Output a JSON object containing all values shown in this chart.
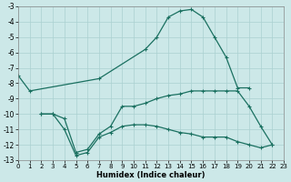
{
  "xlabel": "Humidex (Indice chaleur)",
  "xlim": [
    0,
    23
  ],
  "ylim": [
    -13,
    -3
  ],
  "yticks": [
    -13,
    -12,
    -11,
    -10,
    -9,
    -8,
    -7,
    -6,
    -5,
    -4,
    -3
  ],
  "xticks": [
    0,
    1,
    2,
    3,
    4,
    5,
    6,
    7,
    8,
    9,
    10,
    11,
    12,
    13,
    14,
    15,
    16,
    17,
    18,
    19,
    20,
    21,
    22,
    23
  ],
  "bg_color": "#cce8e8",
  "grid_color": "#aad0d0",
  "line_color": "#1a7060",
  "line1": {
    "x": [
      0,
      1,
      7,
      11,
      12,
      13,
      14,
      15,
      16,
      17,
      18,
      19,
      20
    ],
    "y": [
      -7.5,
      -8.5,
      -7.7,
      -5.8,
      -5.0,
      -3.7,
      -3.3,
      -3.2,
      -3.7,
      -5.0,
      -6.3,
      -8.3,
      -8.3
    ]
  },
  "line2": {
    "x": [
      2,
      3,
      4,
      5,
      6,
      7,
      8,
      9,
      10,
      11,
      12,
      13,
      14,
      15,
      16,
      17,
      18,
      19,
      20,
      21,
      22
    ],
    "y": [
      -10.0,
      -10.0,
      -10.3,
      -12.5,
      -12.3,
      -11.3,
      -10.8,
      -9.5,
      -9.5,
      -9.3,
      -9.0,
      -8.8,
      -8.7,
      -8.5,
      -8.5,
      -8.5,
      -8.5,
      -8.5,
      -9.5,
      -10.8,
      -12.0
    ]
  },
  "line3": {
    "x": [
      2,
      3,
      4,
      5,
      6,
      7,
      8,
      9,
      10,
      11,
      12,
      13,
      14,
      15,
      16,
      17,
      18,
      19,
      20,
      21,
      22
    ],
    "y": [
      -10.0,
      -10.0,
      -11.0,
      -12.7,
      -12.5,
      -11.5,
      -11.2,
      -10.8,
      -10.7,
      -10.7,
      -10.8,
      -11.0,
      -11.2,
      -11.3,
      -11.5,
      -11.5,
      -11.5,
      -11.8,
      -12.0,
      -12.2,
      -12.0
    ]
  }
}
